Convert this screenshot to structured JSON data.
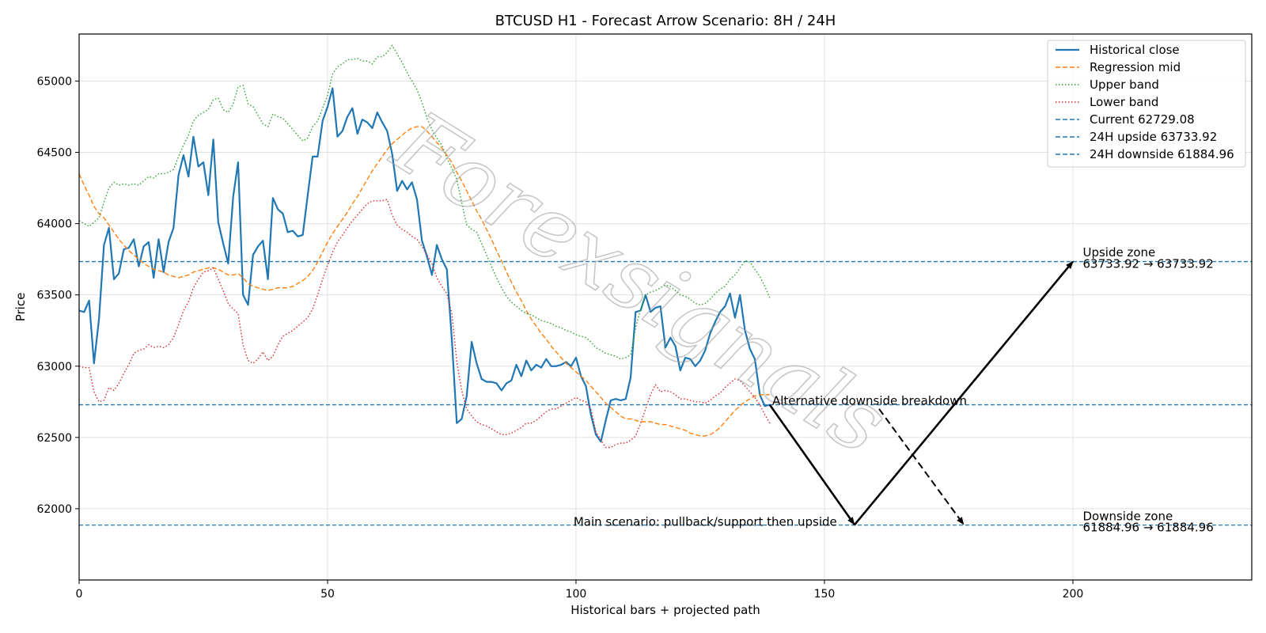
{
  "chart_data": {
    "type": "line",
    "title": "BTCUSD H1 - Forecast Arrow Scenario: 8H / 24H",
    "xlabel": "Historical bars + projected path",
    "ylabel": "Price",
    "xlim": [
      0,
      236
    ],
    "ylim": [
      61500,
      65330
    ],
    "xticks": [
      0,
      50,
      100,
      150,
      200
    ],
    "yticks": [
      62000,
      62500,
      63000,
      63500,
      64000,
      64500,
      65000
    ],
    "grid": true,
    "legend_position": "top-right",
    "colors": {
      "close": "#1f77b4",
      "mid": "#ff7f0e",
      "upper": "#2ca02c",
      "lower": "#d62728",
      "hline": "#1f77b4",
      "arrow": "#000000"
    },
    "legend": [
      {
        "label": "Historical close",
        "style": "solid",
        "color": "#1f77b4"
      },
      {
        "label": "Regression mid",
        "style": "dashed",
        "color": "#ff7f0e"
      },
      {
        "label": "Upper band",
        "style": "dotted",
        "color": "#2ca02c"
      },
      {
        "label": "Lower band",
        "style": "dotted",
        "color": "#d62728"
      },
      {
        "label": "Current 62729.08",
        "style": "dashed",
        "color": "#1f77b4"
      },
      {
        "label": "24H upside 63733.92",
        "style": "dashed",
        "color": "#1f77b4"
      },
      {
        "label": "24H downside 61884.96",
        "style": "dashed",
        "color": "#1f77b4"
      }
    ],
    "hlines": [
      62729.08,
      63733.92,
      61884.96
    ],
    "series": [
      {
        "name": "Historical close",
        "style": "solid",
        "x_start": 0,
        "values": [
          63390,
          63380,
          63460,
          63020,
          63330,
          63850,
          63970,
          63610,
          63650,
          63820,
          63830,
          63890,
          63700,
          63840,
          63870,
          63620,
          63890,
          63660,
          63870,
          63970,
          64340,
          64480,
          64330,
          64610,
          64400,
          64430,
          64200,
          64590,
          64010,
          63860,
          63720,
          64190,
          64430,
          63500,
          63430,
          63780,
          63840,
          63880,
          63610,
          64180,
          64100,
          64070,
          63940,
          63950,
          63910,
          63920,
          64200,
          64470,
          64470,
          64720,
          64820,
          64950,
          64610,
          64650,
          64750,
          64810,
          64630,
          64730,
          64710,
          64670,
          64780,
          64710,
          64650,
          64490,
          64230,
          64300,
          64240,
          64290,
          64170,
          63880,
          63770,
          63640,
          63850,
          63750,
          63680,
          63190,
          62600,
          62630,
          62790,
          63170,
          63020,
          62910,
          62890,
          62890,
          62880,
          62830,
          62880,
          62900,
          63010,
          62930,
          63040,
          62970,
          63010,
          62990,
          63050,
          63000,
          63000,
          63010,
          63030,
          63000,
          63060,
          62930,
          62860,
          62660,
          62520,
          62470,
          62620,
          62760,
          62770,
          62760,
          62770,
          62920,
          63380,
          63390,
          63500,
          63380,
          63410,
          63420,
          63130,
          63200,
          63140,
          62970,
          63060,
          63050,
          63000,
          63040,
          63110,
          63230,
          63310,
          63380,
          63420,
          63510,
          63340,
          63500,
          63250,
          63120,
          63050,
          62800,
          62720,
          62730
        ]
      },
      {
        "name": "Regression mid",
        "style": "dashed",
        "x_start": 0,
        "values": [
          64350,
          64270,
          64200,
          64120,
          64070,
          64040,
          63990,
          63940,
          63890,
          63850,
          63810,
          63780,
          63750,
          63720,
          63700,
          63680,
          63670,
          63660,
          63640,
          63630,
          63620,
          63630,
          63640,
          63660,
          63670,
          63680,
          63690,
          63690,
          63680,
          63660,
          63640,
          63640,
          63650,
          63620,
          63580,
          63560,
          63550,
          63540,
          63530,
          63540,
          63550,
          63550,
          63550,
          63560,
          63580,
          63600,
          63630,
          63670,
          63730,
          63800,
          63870,
          63930,
          63980,
          64030,
          64080,
          64140,
          64190,
          64250,
          64310,
          64370,
          64420,
          64470,
          64520,
          64560,
          64590,
          64620,
          64650,
          64670,
          64680,
          64680,
          64650,
          64610,
          64570,
          64530,
          64480,
          64430,
          64360,
          64300,
          64230,
          64160,
          64090,
          64030,
          63960,
          63890,
          63810,
          63740,
          63660,
          63590,
          63520,
          63460,
          63390,
          63330,
          63280,
          63230,
          63190,
          63140,
          63100,
          63060,
          63020,
          62990,
          62960,
          62930,
          62900,
          62860,
          62820,
          62780,
          62740,
          62710,
          62680,
          62650,
          62630,
          62630,
          62620,
          62610,
          62610,
          62610,
          62600,
          62590,
          62590,
          62580,
          62570,
          62560,
          62550,
          62530,
          62520,
          62510,
          62510,
          62520,
          62540,
          62570,
          62610,
          62650,
          62690,
          62720,
          62750,
          62770,
          62790,
          62800,
          62800,
          62800
        ]
      },
      {
        "name": "Upper band",
        "style": "dotted",
        "x_start": 0,
        "values": [
          64020,
          64000,
          63980,
          64010,
          64040,
          64150,
          64250,
          64290,
          64270,
          64280,
          64270,
          64280,
          64270,
          64300,
          64330,
          64320,
          64350,
          64350,
          64360,
          64380,
          64470,
          64550,
          64620,
          64720,
          64760,
          64780,
          64800,
          64870,
          64880,
          64800,
          64780,
          64840,
          64960,
          64970,
          64840,
          64820,
          64760,
          64700,
          64680,
          64770,
          64750,
          64740,
          64700,
          64660,
          64620,
          64580,
          64600,
          64680,
          64720,
          64810,
          64900,
          65050,
          65100,
          65120,
          65150,
          65150,
          65160,
          65140,
          65140,
          65120,
          65170,
          65170,
          65200,
          65250,
          65190,
          65130,
          65060,
          65000,
          64940,
          64850,
          64740,
          64660,
          64600,
          64550,
          64460,
          64390,
          64310,
          64150,
          63990,
          63960,
          63940,
          63860,
          63780,
          63700,
          63620,
          63550,
          63490,
          63450,
          63420,
          63390,
          63370,
          63360,
          63340,
          63320,
          63310,
          63300,
          63280,
          63270,
          63250,
          63240,
          63220,
          63210,
          63200,
          63170,
          63130,
          63110,
          63090,
          63080,
          63070,
          63050,
          63060,
          63080,
          63270,
          63400,
          63500,
          63520,
          63530,
          63550,
          63570,
          63560,
          63530,
          63500,
          63490,
          63470,
          63440,
          63430,
          63440,
          63470,
          63510,
          63540,
          63560,
          63610,
          63640,
          63690,
          63740,
          63730,
          63680,
          63630,
          63560,
          63480
        ]
      },
      {
        "name": "Lower band",
        "style": "dotted",
        "x_start": 0,
        "values": [
          63000,
          62990,
          62990,
          62820,
          62750,
          62760,
          62850,
          62830,
          62880,
          62950,
          63010,
          63090,
          63110,
          63120,
          63150,
          63130,
          63140,
          63130,
          63150,
          63200,
          63290,
          63390,
          63450,
          63550,
          63610,
          63660,
          63670,
          63690,
          63610,
          63530,
          63440,
          63400,
          63370,
          63150,
          63040,
          63020,
          63050,
          63100,
          63040,
          63070,
          63150,
          63210,
          63230,
          63250,
          63280,
          63310,
          63340,
          63400,
          63500,
          63610,
          63710,
          63800,
          63870,
          63920,
          63970,
          64020,
          64060,
          64100,
          64140,
          64160,
          64160,
          64160,
          64170,
          64060,
          63990,
          63960,
          63940,
          63910,
          63890,
          63840,
          63780,
          63720,
          63620,
          63560,
          63510,
          63370,
          63030,
          62830,
          62700,
          62650,
          62610,
          62590,
          62580,
          62560,
          62540,
          62520,
          62520,
          62530,
          62550,
          62570,
          62600,
          62600,
          62620,
          62650,
          62680,
          62700,
          62700,
          62720,
          62740,
          62760,
          62780,
          62760,
          62750,
          62700,
          62540,
          62480,
          62430,
          62430,
          62450,
          62460,
          62460,
          62480,
          62510,
          62600,
          62700,
          62800,
          62870,
          62820,
          62830,
          62820,
          62800,
          62770,
          62770,
          62760,
          62750,
          62750,
          62740,
          62760,
          62790,
          62810,
          62850,
          62880,
          62910,
          62900,
          62860,
          62820,
          62780,
          62730,
          62660,
          62600
        ]
      }
    ],
    "arrows": [
      {
        "name": "main-down",
        "from": [
          139,
          62729.08
        ],
        "to": [
          156,
          61890
        ],
        "style": "solid"
      },
      {
        "name": "main-up",
        "from": [
          156,
          61884.96
        ],
        "to": [
          200,
          63733.92
        ],
        "style": "solid"
      },
      {
        "name": "alternative",
        "from": [
          161,
          62700
        ],
        "to": [
          178,
          61890
        ],
        "style": "dashed"
      }
    ],
    "annotations": [
      {
        "name": "annotation-alternative",
        "text": "Alternative downside breakdown",
        "x": 139.5,
        "y": 62730,
        "anchor": "start"
      },
      {
        "name": "annotation-main",
        "text": "Main scenario: pullback/support then upside",
        "x": 99.5,
        "y": 61880,
        "anchor": "start"
      },
      {
        "name": "annotation-upside-title",
        "text": "Upside zone",
        "x": 202,
        "y": 63770,
        "anchor": "start"
      },
      {
        "name": "annotation-upside-values",
        "text": "63733.92 → 63733.92",
        "x": 202,
        "y": 63690,
        "anchor": "start"
      },
      {
        "name": "annotation-downside-title",
        "text": "Downside zone",
        "x": 202,
        "y": 61920,
        "anchor": "start"
      },
      {
        "name": "annotation-downside-values",
        "text": "61884.96 → 61884.96",
        "x": 202,
        "y": 61840,
        "anchor": "start"
      }
    ],
    "watermark": "Forexsignals"
  }
}
